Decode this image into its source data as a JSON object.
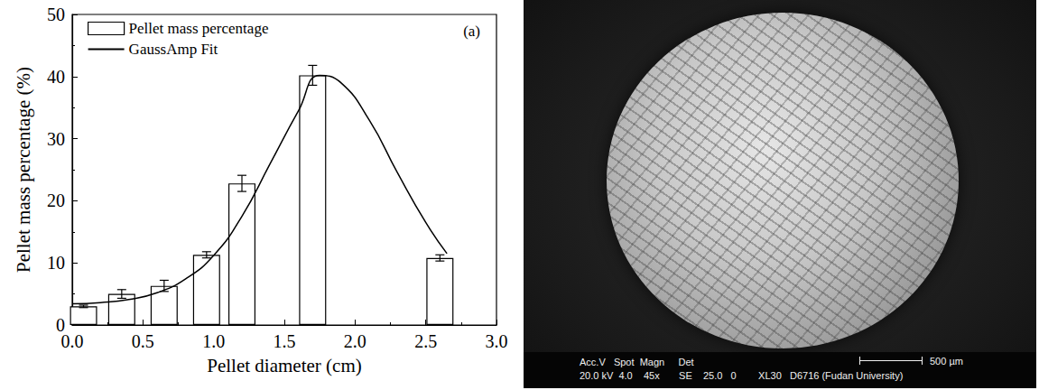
{
  "chart_data": {
    "type": "bar",
    "panel_label": "(a)",
    "x_label": "Pellet diameter (cm)",
    "y_label": "Pellet mass percentage (%)",
    "xlim": [
      0,
      3
    ],
    "xticks": [
      {
        "value": 0,
        "label": "0.0"
      },
      0.5,
      {
        "value": 1,
        "label": "1.0"
      },
      1.5,
      {
        "value": 2,
        "label": "2.0"
      },
      2.5,
      {
        "value": 3,
        "label": "3.0"
      }
    ],
    "ylim": [
      0,
      50
    ],
    "yticks": [
      0,
      10,
      20,
      30,
      40,
      50
    ],
    "legend": "upper left",
    "series": [
      {
        "name": "Pellet mass percentage",
        "type": "bar",
        "color": "#ffffff",
        "x": [
          0.08,
          0.35,
          0.65,
          0.95,
          1.2,
          1.7,
          2.6
        ],
        "values": [
          3.0,
          5.0,
          6.3,
          11.3,
          22.8,
          40.2,
          10.8
        ],
        "errors": [
          0.2,
          0.7,
          0.9,
          0.5,
          1.3,
          1.6,
          0.5
        ]
      },
      {
        "name": "GaussAmp Fit",
        "type": "line",
        "color": "#000000",
        "line_style": "solid",
        "x": [
          0,
          0.2,
          0.4,
          0.6,
          0.8,
          1.0,
          1.2,
          1.4,
          1.6,
          1.75,
          1.9,
          2.1,
          2.3,
          2.5,
          2.65
        ],
        "values": [
          3.4,
          3.6,
          4.1,
          5.2,
          7.4,
          11.2,
          17.5,
          26,
          34.5,
          40.2,
          39,
          33,
          24.5,
          16.5,
          11.5
        ]
      }
    ]
  },
  "micrograph": {
    "info_line_1": "Acc.V   Spot  Magn     Det",
    "scale_bar": "500 µm",
    "info_line_2": "20.0 kV  4.0    45x       SE    25.0   0        XL30   D6716 (Fudan University)"
  }
}
